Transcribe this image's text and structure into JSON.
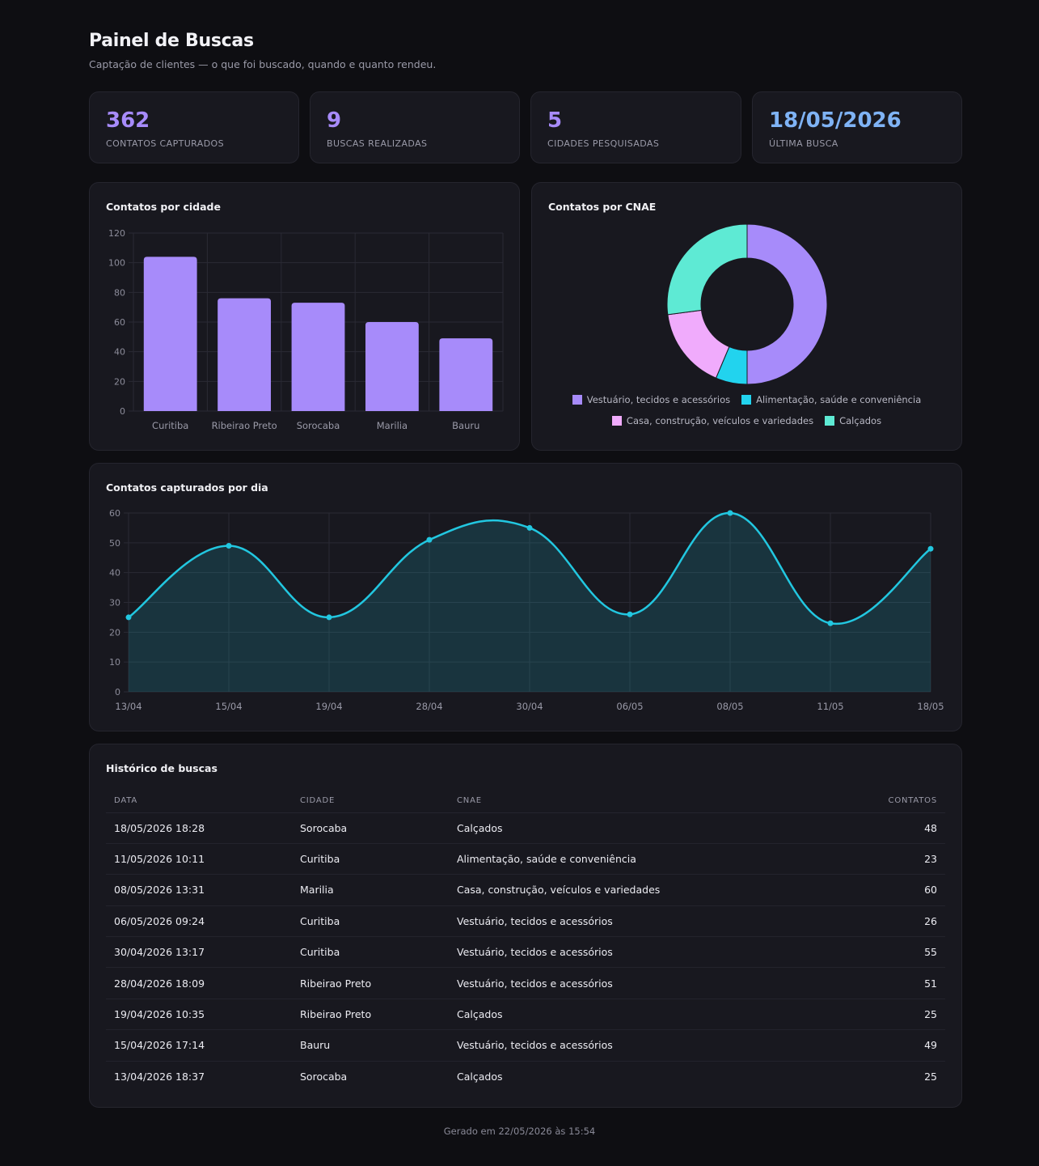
{
  "header": {
    "title": "Painel de Buscas",
    "subtitle": "Captação de clientes — o que foi buscado, quando e quanto rendeu."
  },
  "kpis": [
    {
      "value": "362",
      "label": "CONTATOS CAPTURADOS"
    },
    {
      "value": "9",
      "label": "BUSCAS REALIZADAS"
    },
    {
      "value": "5",
      "label": "CIDADES PESQUISADAS"
    },
    {
      "value": "18/05/2026",
      "label": "ÚLTIMA BUSCA"
    }
  ],
  "colors": {
    "accent": "#a78bfa",
    "line": "#22c7e0",
    "pink": "#f0abfc",
    "teal": "#5eead4",
    "cyan": "#22d3ee"
  },
  "chart_data": [
    {
      "type": "bar",
      "title": "Contatos por cidade",
      "categories": [
        "Curitiba",
        "Ribeirao Preto",
        "Sorocaba",
        "Marilia",
        "Bauru"
      ],
      "values": [
        104,
        76,
        73,
        60,
        49
      ],
      "ylim": [
        0,
        120
      ],
      "yticks": [
        0,
        20,
        40,
        60,
        80,
        100,
        120
      ],
      "grid": true
    },
    {
      "type": "pie",
      "title": "Contatos por CNAE",
      "labels": [
        "Vestuário, tecidos e acessórios",
        "Alimentação, saúde e conveniência",
        "Casa, construção, veículos e variedades",
        "Calçados"
      ],
      "values": [
        181,
        23,
        60,
        98
      ],
      "colors": [
        "#a78bfa",
        "#22d3ee",
        "#f0abfc",
        "#5eead4"
      ],
      "legend": "bottom"
    },
    {
      "type": "area",
      "title": "Contatos capturados por dia",
      "x": [
        "13/04",
        "15/04",
        "19/04",
        "28/04",
        "30/04",
        "06/05",
        "08/05",
        "11/05",
        "18/05"
      ],
      "values": [
        25,
        49,
        25,
        51,
        55,
        26,
        60,
        23,
        48
      ],
      "ylim": [
        0,
        60
      ],
      "yticks": [
        0,
        10,
        20,
        30,
        40,
        50,
        60
      ],
      "grid": true
    }
  ],
  "history": {
    "title": "Histórico de buscas",
    "columns": [
      "DATA",
      "CIDADE",
      "CNAE",
      "CONTATOS"
    ],
    "rows": [
      [
        "18/05/2026 18:28",
        "Sorocaba",
        "Calçados",
        "48"
      ],
      [
        "11/05/2026 10:11",
        "Curitiba",
        "Alimentação, saúde e conveniência",
        "23"
      ],
      [
        "08/05/2026 13:31",
        "Marilia",
        "Casa, construção, veículos e variedades",
        "60"
      ],
      [
        "06/05/2026 09:24",
        "Curitiba",
        "Vestuário, tecidos e acessórios",
        "26"
      ],
      [
        "30/04/2026 13:17",
        "Curitiba",
        "Vestuário, tecidos e acessórios",
        "55"
      ],
      [
        "28/04/2026 18:09",
        "Ribeirao Preto",
        "Vestuário, tecidos e acessórios",
        "51"
      ],
      [
        "19/04/2026 10:35",
        "Ribeirao Preto",
        "Calçados",
        "25"
      ],
      [
        "15/04/2026 17:14",
        "Bauru",
        "Vestuário, tecidos e acessórios",
        "49"
      ],
      [
        "13/04/2026 18:37",
        "Sorocaba",
        "Calçados",
        "25"
      ]
    ]
  },
  "footer": "Gerado em 22/05/2026 às 15:54"
}
